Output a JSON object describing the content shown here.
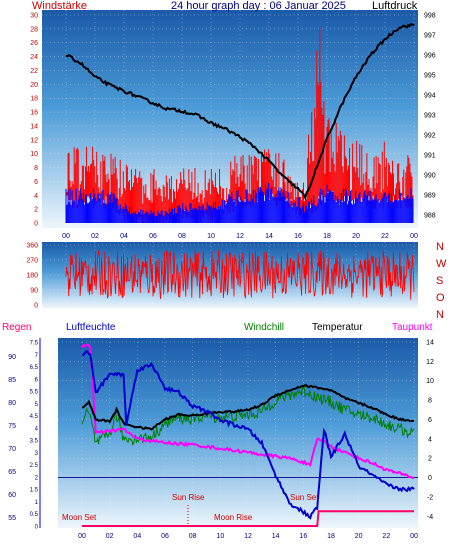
{
  "header": {
    "title": "24 hour graph day : 06 Januar 2025",
    "left_label": "Windstärke",
    "right_label": "Luftdruck"
  },
  "colors": {
    "wind_speed": "#ff0000",
    "wind_avg": "#0000ff",
    "pressure": "#000000",
    "direction": "#ff0000",
    "humidity": "#0000cc",
    "windchill": "#008000",
    "temperature": "#000000",
    "dewpoint": "#ff00ff",
    "rain": "#ff0066"
  },
  "chart_data": [
    {
      "type": "line",
      "title": "24 hour graph day : 06 Januar 2025",
      "left_axis_label": "Windstärke",
      "right_axis_label": "Luftdruck",
      "x_ticks": [
        "00",
        "02",
        "04",
        "06",
        "08",
        "10",
        "12",
        "14",
        "16",
        "18",
        "20",
        "22",
        "00"
      ],
      "y_left_ticks": [
        "0",
        "2",
        "4",
        "6",
        "8",
        "10",
        "12",
        "14",
        "16",
        "18",
        "20",
        "22",
        "24",
        "26",
        "28",
        "30"
      ],
      "y_right_ticks": [
        "988",
        "989",
        "990",
        "991",
        "992",
        "993",
        "994",
        "995",
        "996",
        "997",
        "998"
      ],
      "y_left_range": [
        0,
        30
      ],
      "y_right_range": [
        987.6,
        998
      ],
      "pressure_hpa": {
        "hours": [
          0,
          1,
          2,
          3,
          4,
          5,
          6,
          7,
          8,
          9,
          10,
          11,
          12,
          13,
          14,
          15,
          16,
          16.5,
          17,
          18,
          19,
          20,
          21,
          22,
          23,
          24
        ],
        "values": [
          996.0,
          995.6,
          994.9,
          994.5,
          994.2,
          993.9,
          993.6,
          993.3,
          993.2,
          993.0,
          992.6,
          992.3,
          991.9,
          991.4,
          990.7,
          989.9,
          989.3,
          988.9,
          989.8,
          991.8,
          993.5,
          994.9,
          996.0,
          996.8,
          997.4,
          997.5
        ]
      },
      "wind_gust_envelope": {
        "hours": [
          0,
          1,
          2,
          3,
          4,
          5,
          6,
          7,
          8,
          9,
          10,
          11,
          12,
          13,
          14,
          15,
          16,
          16.5,
          17,
          17.5,
          18,
          19,
          20,
          21,
          22,
          23,
          24
        ],
        "values": [
          12,
          11,
          12,
          11,
          9,
          8,
          8,
          8,
          8,
          8,
          8,
          8,
          11,
          10,
          11,
          10,
          8,
          7,
          22,
          30,
          16,
          14,
          12,
          11,
          12,
          10,
          11
        ]
      },
      "wind_avg_envelope": {
        "hours": [
          0,
          1,
          2,
          3,
          4,
          5,
          6,
          7,
          8,
          9,
          10,
          11,
          12,
          13,
          14,
          15,
          16,
          16.5,
          17,
          18,
          19,
          20,
          21,
          22,
          23,
          24
        ],
        "values": [
          5,
          5,
          5,
          5,
          3,
          2,
          2,
          2,
          3,
          3,
          3,
          4,
          5,
          5,
          6,
          5,
          4,
          3,
          4,
          6,
          5,
          5,
          5,
          5,
          5,
          5
        ]
      }
    },
    {
      "type": "line",
      "title": "",
      "x_ticks": [
        "00",
        "02",
        "04",
        "06",
        "08",
        "10",
        "12",
        "14",
        "16",
        "18",
        "20",
        "22",
        "00"
      ],
      "y_left_ticks": [
        "0",
        "90",
        "180",
        "270",
        "360"
      ],
      "y_right_labels": [
        "N",
        "W",
        "S",
        "O",
        "N"
      ],
      "y_range": [
        0,
        360
      ],
      "direction_band": {
        "hours": [
          0,
          2,
          4,
          6,
          8,
          10,
          12,
          14,
          16,
          18,
          20,
          22,
          24
        ],
        "low": [
          40,
          40,
          40,
          30,
          40,
          40,
          40,
          40,
          40,
          50,
          40,
          40,
          30
        ],
        "high": [
          330,
          330,
          330,
          340,
          330,
          330,
          330,
          330,
          330,
          330,
          330,
          330,
          320
        ]
      }
    },
    {
      "type": "line",
      "title": "",
      "series_labels": [
        "Regen",
        "Luftfeuchte",
        "Windchill",
        "Temperatur",
        "Taupunkt"
      ],
      "annotations": [
        "Moon Set",
        "Sun Rise",
        "Moon Rise",
        "Sun Set"
      ],
      "x_ticks": [
        "00",
        "02",
        "04",
        "06",
        "08",
        "10",
        "12",
        "14",
        "16",
        "18",
        "20",
        "22",
        "00"
      ],
      "humidity_ticks": [
        "55",
        "60",
        "65",
        "70",
        "75",
        "80",
        "85",
        "90"
      ],
      "rain_ticks": [
        "0",
        "0.5",
        "1",
        "1.5",
        "2",
        "2.5",
        "3",
        "3.5",
        "4",
        "4.5",
        "5",
        "5.5",
        "6",
        "6.5",
        "7",
        "7.5"
      ],
      "temp_ticks": [
        "-4",
        "-2",
        "0",
        "2",
        "4",
        "6",
        "8",
        "10",
        "12",
        "14"
      ],
      "humidity_range": [
        53,
        93
      ],
      "rain_range": [
        0,
        7.5
      ],
      "temp_range": [
        -5,
        14
      ],
      "temperature_c": {
        "hours": [
          0,
          0.5,
          1,
          2,
          2.5,
          3,
          4,
          5,
          6,
          7,
          8,
          9,
          10,
          11,
          12,
          13,
          14,
          15,
          16,
          17,
          18,
          19,
          20,
          21,
          22,
          23,
          24
        ],
        "values": [
          7.2,
          7.8,
          6.0,
          5.8,
          7.0,
          5.6,
          5.2,
          5.0,
          6.0,
          6.5,
          6.4,
          6.6,
          6.8,
          6.8,
          7.0,
          7.5,
          8.5,
          9.0,
          9.5,
          9.3,
          9.0,
          8.2,
          7.7,
          7.2,
          6.5,
          6.0,
          5.9
        ]
      },
      "windchill_c": {
        "hours": [
          0,
          0.5,
          1,
          2,
          2.5,
          3,
          4,
          5,
          6,
          7,
          8,
          9,
          10,
          11,
          12,
          13,
          14,
          15,
          16,
          17,
          18,
          19,
          20,
          21,
          22,
          23,
          24
        ],
        "values": [
          6.0,
          6.8,
          3.5,
          4.5,
          6.5,
          4.0,
          4.0,
          4.2,
          5.5,
          6.2,
          6.0,
          6.4,
          6.2,
          6.3,
          6.5,
          6.8,
          8.0,
          8.5,
          9.0,
          8.3,
          7.8,
          7.0,
          6.5,
          6.2,
          5.5,
          5.0,
          4.5
        ]
      },
      "dewpoint_c": {
        "hours": [
          0,
          0.3,
          0.6,
          1,
          2,
          3,
          4,
          5,
          6,
          7,
          8,
          9,
          10,
          11,
          12,
          13,
          14,
          15,
          16,
          16.5,
          17,
          17.5,
          18,
          19,
          20,
          21,
          22,
          23,
          24
        ],
        "values": [
          13.5,
          13.8,
          13.5,
          4.6,
          4.8,
          5.0,
          4.0,
          3.8,
          3.6,
          3.5,
          3.4,
          3.2,
          3.0,
          2.8,
          2.6,
          2.4,
          2.2,
          2.0,
          1.6,
          1.2,
          4.0,
          3.8,
          3.2,
          2.6,
          2.0,
          1.5,
          0.8,
          0.4,
          0.0
        ]
      },
      "humidity_pct": {
        "hours": [
          0,
          0.3,
          0.6,
          1,
          1.5,
          2,
          3,
          3.2,
          4,
          5,
          5.5,
          6,
          7,
          8,
          9,
          10,
          11,
          12,
          13,
          14,
          15,
          16,
          16.5,
          17,
          17.5,
          18,
          19,
          20,
          21,
          22,
          23,
          24
        ],
        "values": [
          90,
          91,
          90,
          82,
          84,
          86,
          86,
          75,
          87,
          88,
          86,
          83,
          82,
          79,
          78,
          76,
          75,
          74,
          71,
          64,
          58,
          56,
          55,
          57,
          74,
          68,
          73,
          66,
          64,
          62,
          61,
          61
        ]
      },
      "rain_mm": {
        "hours": [
          0,
          16.5,
          17.0,
          17.1,
          24
        ],
        "values": [
          0,
          0,
          0,
          0.6,
          0.6
        ]
      }
    }
  ]
}
